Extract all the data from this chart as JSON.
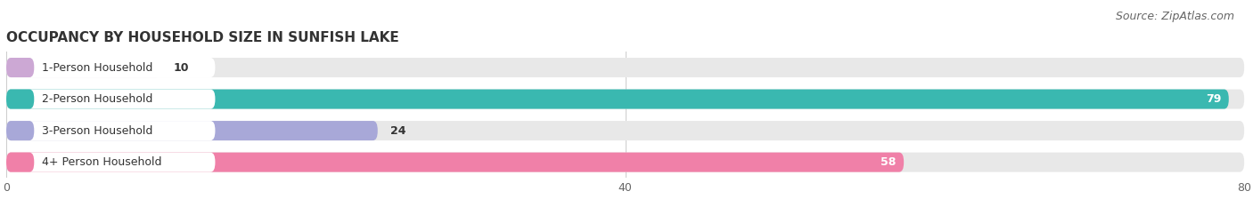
{
  "title": "OCCUPANCY BY HOUSEHOLD SIZE IN SUNFISH LAKE",
  "source": "Source: ZipAtlas.com",
  "categories": [
    "1-Person Household",
    "2-Person Household",
    "3-Person Household",
    "4+ Person Household"
  ],
  "values": [
    10,
    79,
    24,
    58
  ],
  "bar_colors": [
    "#cca8d4",
    "#3ab8b0",
    "#a8a8d8",
    "#f080a8"
  ],
  "bar_bg_color": "#e8e8e8",
  "label_bg_color": "#ffffff",
  "xlim": [
    0,
    80
  ],
  "xticks": [
    0,
    40,
    80
  ],
  "title_fontsize": 11,
  "source_fontsize": 9,
  "cat_fontsize": 9,
  "value_fontsize": 9,
  "background_color": "#ffffff",
  "figure_width": 14.06,
  "figure_height": 2.33,
  "bar_height": 0.62,
  "bar_gap": 0.18
}
